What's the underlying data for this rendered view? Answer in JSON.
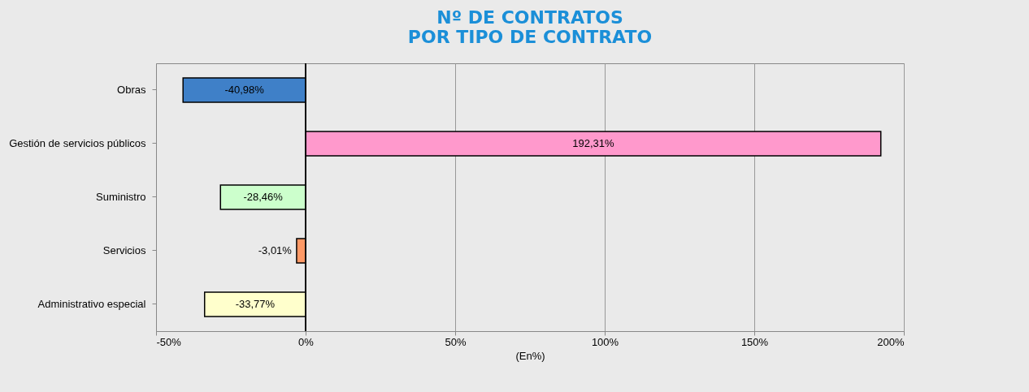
{
  "chart_data": {
    "type": "bar",
    "orientation": "horizontal",
    "title": "Nº DE CONTRATOS\nPOR TIPO DE CONTRATO",
    "xlabel": "(En%)",
    "categories": [
      "Obras",
      "Gestión de servicios públicos",
      "Suministro",
      "Servicios",
      "Administrativo especial"
    ],
    "values": [
      -40.98,
      192.31,
      -28.46,
      -3.01,
      -33.77
    ],
    "colors": [
      "#3f80c8",
      "#ff99cc",
      "#ccffcc",
      "#ff9966",
      "#ffffcc"
    ],
    "value_labels": [
      "-40,98%",
      "192,31%",
      "-28,46%",
      "-3,01%",
      "-33,77%"
    ],
    "xlim": [
      -50,
      200
    ],
    "xticks": [
      {
        "value": -50,
        "label": "-50%"
      },
      {
        "value": 0,
        "label": "0%"
      },
      {
        "value": 50,
        "label": "50%"
      },
      {
        "value": 100,
        "label": "100%"
      },
      {
        "value": 150,
        "label": "150%"
      },
      {
        "value": 200,
        "label": "200%"
      }
    ],
    "grid": "x"
  }
}
